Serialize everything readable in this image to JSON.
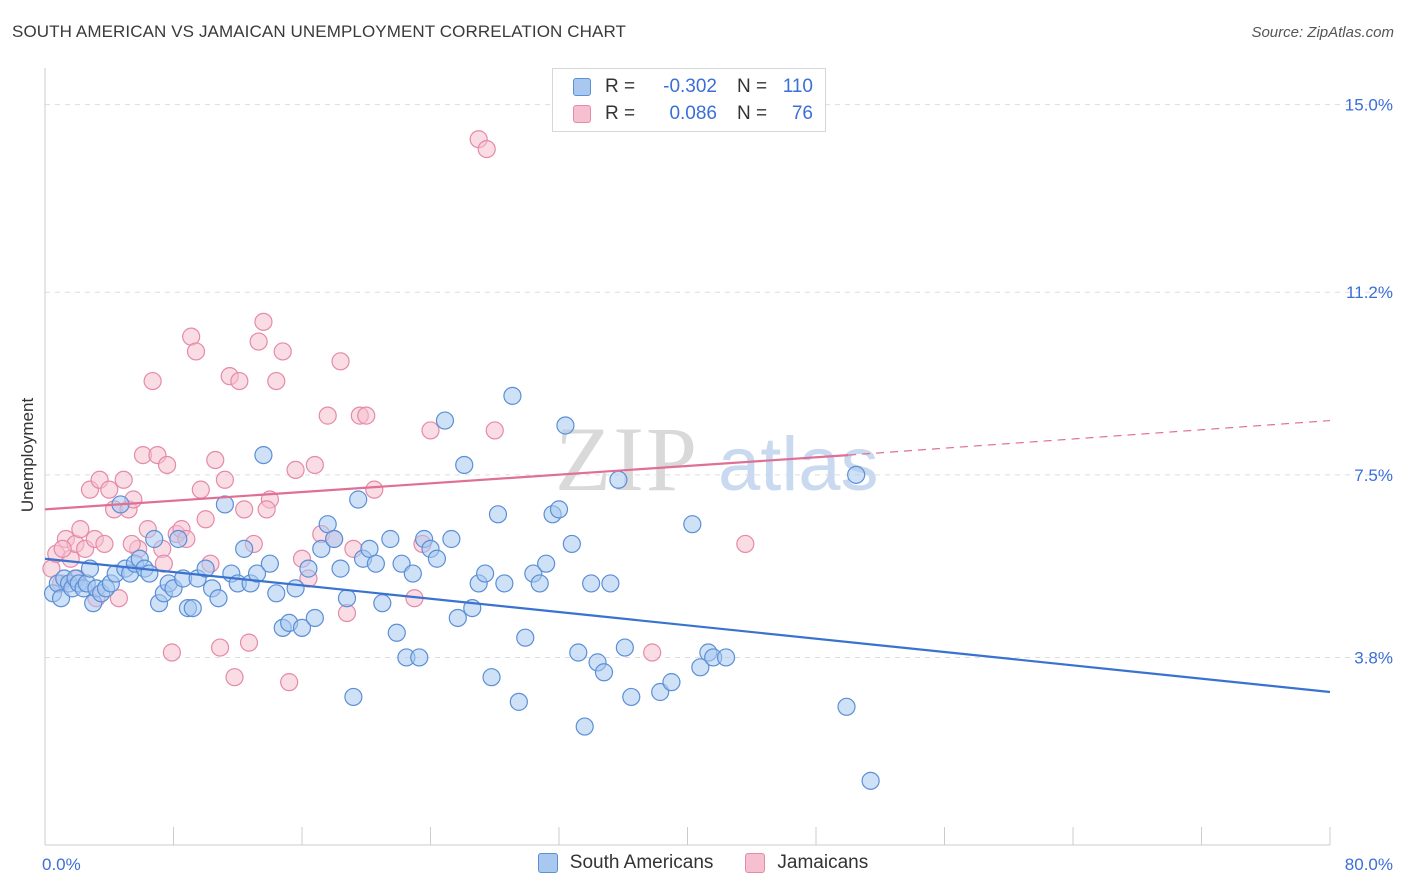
{
  "header": {
    "title": "SOUTH AMERICAN VS JAMAICAN UNEMPLOYMENT CORRELATION CHART",
    "source": "Source: ZipAtlas.com"
  },
  "legend": {
    "rows": [
      {
        "r_label": "R =",
        "r_value": "-0.302",
        "n_label": "N =",
        "n_value": "110"
      },
      {
        "r_label": "R =",
        "r_value": "0.086",
        "n_label": "N =",
        "n_value": "76"
      }
    ]
  },
  "colors": {
    "blue_fill": "#a8c8f0",
    "blue_stroke": "#5b8fd6",
    "blue_line": "#3a72d0",
    "pink_fill": "#f6c0d0",
    "pink_stroke": "#e58aa8",
    "pink_line": "#e06f96",
    "grid": "#dddddd",
    "tick_label": "#3a6fd8"
  },
  "chart_data": {
    "type": "scatter",
    "title": "SOUTH AMERICAN VS JAMAICAN UNEMPLOYMENT CORRELATION CHART",
    "xlabel": "",
    "ylabel": "Unemployment",
    "xlim": [
      0,
      80
    ],
    "ylim": [
      0,
      15.5
    ],
    "x_tick_labels": [
      "0.0%",
      "80.0%"
    ],
    "y_ticks": [
      3.8,
      7.5,
      11.2,
      15.0
    ],
    "y_tick_labels": [
      "3.8%",
      "7.5%",
      "11.2%",
      "15.0%"
    ],
    "grid": true,
    "legend_position": "top-center",
    "watermark": "ZIPatlas",
    "series": [
      {
        "name": "South Americans",
        "r": -0.302,
        "n": 110,
        "trend": {
          "x": [
            0,
            80
          ],
          "y": [
            5.8,
            3.1
          ]
        },
        "points": [
          [
            0.5,
            5.1
          ],
          [
            0.8,
            5.3
          ],
          [
            1.0,
            5.0
          ],
          [
            1.2,
            5.4
          ],
          [
            1.5,
            5.3
          ],
          [
            1.7,
            5.2
          ],
          [
            1.9,
            5.4
          ],
          [
            2.1,
            5.3
          ],
          [
            2.4,
            5.2
          ],
          [
            2.6,
            5.3
          ],
          [
            2.8,
            5.6
          ],
          [
            3.0,
            4.9
          ],
          [
            3.2,
            5.2
          ],
          [
            3.5,
            5.1
          ],
          [
            3.8,
            5.2
          ],
          [
            4.1,
            5.3
          ],
          [
            4.4,
            5.5
          ],
          [
            4.7,
            6.9
          ],
          [
            5.0,
            5.6
          ],
          [
            5.3,
            5.5
          ],
          [
            5.6,
            5.7
          ],
          [
            5.9,
            5.8
          ],
          [
            6.2,
            5.6
          ],
          [
            6.5,
            5.5
          ],
          [
            6.8,
            6.2
          ],
          [
            7.1,
            4.9
          ],
          [
            7.4,
            5.1
          ],
          [
            7.7,
            5.3
          ],
          [
            8.0,
            5.2
          ],
          [
            8.3,
            6.2
          ],
          [
            8.6,
            5.4
          ],
          [
            8.9,
            4.8
          ],
          [
            9.2,
            4.8
          ],
          [
            9.5,
            5.4
          ],
          [
            10.0,
            5.6
          ],
          [
            10.4,
            5.2
          ],
          [
            10.8,
            5.0
          ],
          [
            11.2,
            6.9
          ],
          [
            11.6,
            5.5
          ],
          [
            12.0,
            5.3
          ],
          [
            12.4,
            6.0
          ],
          [
            12.8,
            5.3
          ],
          [
            13.2,
            5.5
          ],
          [
            13.6,
            7.9
          ],
          [
            14.0,
            5.7
          ],
          [
            14.4,
            5.1
          ],
          [
            14.8,
            4.4
          ],
          [
            15.2,
            4.5
          ],
          [
            15.6,
            5.2
          ],
          [
            16.0,
            4.4
          ],
          [
            16.4,
            5.6
          ],
          [
            16.8,
            4.6
          ],
          [
            17.2,
            6.0
          ],
          [
            17.6,
            6.5
          ],
          [
            18.0,
            6.2
          ],
          [
            18.4,
            5.6
          ],
          [
            18.8,
            5.0
          ],
          [
            19.2,
            3.0
          ],
          [
            19.5,
            7.0
          ],
          [
            19.8,
            5.8
          ],
          [
            20.2,
            6.0
          ],
          [
            20.6,
            5.7
          ],
          [
            21.0,
            4.9
          ],
          [
            21.5,
            6.2
          ],
          [
            21.9,
            4.3
          ],
          [
            22.2,
            5.7
          ],
          [
            22.5,
            3.8
          ],
          [
            22.9,
            5.5
          ],
          [
            23.3,
            3.8
          ],
          [
            23.6,
            6.2
          ],
          [
            24.0,
            6.0
          ],
          [
            24.4,
            5.8
          ],
          [
            24.9,
            8.6
          ],
          [
            25.3,
            6.2
          ],
          [
            25.7,
            4.6
          ],
          [
            26.1,
            7.7
          ],
          [
            26.6,
            4.8
          ],
          [
            27.0,
            5.3
          ],
          [
            27.4,
            5.5
          ],
          [
            27.8,
            3.4
          ],
          [
            28.2,
            6.7
          ],
          [
            28.6,
            5.3
          ],
          [
            29.1,
            9.1
          ],
          [
            29.5,
            2.9
          ],
          [
            29.9,
            4.2
          ],
          [
            30.4,
            5.5
          ],
          [
            30.8,
            5.3
          ],
          [
            31.2,
            5.7
          ],
          [
            31.6,
            6.7
          ],
          [
            32.0,
            6.8
          ],
          [
            32.4,
            8.5
          ],
          [
            32.8,
            6.1
          ],
          [
            33.2,
            3.9
          ],
          [
            33.6,
            2.4
          ],
          [
            34.0,
            5.3
          ],
          [
            34.4,
            3.7
          ],
          [
            34.8,
            3.5
          ],
          [
            35.2,
            5.3
          ],
          [
            35.7,
            7.4
          ],
          [
            36.1,
            4.0
          ],
          [
            36.5,
            3.0
          ],
          [
            38.3,
            3.1
          ],
          [
            39.0,
            3.3
          ],
          [
            40.3,
            6.5
          ],
          [
            40.8,
            3.6
          ],
          [
            41.3,
            3.9
          ],
          [
            41.6,
            3.8
          ],
          [
            42.4,
            3.8
          ],
          [
            49.9,
            2.8
          ],
          [
            50.5,
            7.5
          ],
          [
            51.4,
            1.3
          ]
        ]
      },
      {
        "name": "Jamaicans",
        "r": 0.086,
        "n": 76,
        "trend": {
          "x": [
            0,
            50
          ],
          "y": [
            6.8,
            7.9
          ]
        },
        "trend_dashed": {
          "x": [
            50,
            80
          ],
          "y": [
            7.9,
            8.6
          ]
        },
        "points": [
          [
            0.4,
            5.6
          ],
          [
            0.7,
            5.9
          ],
          [
            1.0,
            5.3
          ],
          [
            1.3,
            6.2
          ],
          [
            1.6,
            5.8
          ],
          [
            1.9,
            6.1
          ],
          [
            2.2,
            6.4
          ],
          [
            2.5,
            6.0
          ],
          [
            2.8,
            7.2
          ],
          [
            3.1,
            6.2
          ],
          [
            3.4,
            7.4
          ],
          [
            3.7,
            6.1
          ],
          [
            4.0,
            7.2
          ],
          [
            4.3,
            6.8
          ],
          [
            4.6,
            5.0
          ],
          [
            4.9,
            7.4
          ],
          [
            5.2,
            6.8
          ],
          [
            5.5,
            7.0
          ],
          [
            5.8,
            6.0
          ],
          [
            6.1,
            7.9
          ],
          [
            6.4,
            6.4
          ],
          [
            6.7,
            9.4
          ],
          [
            7.0,
            7.9
          ],
          [
            7.3,
            6.0
          ],
          [
            7.6,
            7.7
          ],
          [
            7.9,
            3.9
          ],
          [
            8.2,
            6.3
          ],
          [
            8.5,
            6.4
          ],
          [
            8.8,
            6.2
          ],
          [
            9.1,
            10.3
          ],
          [
            9.4,
            10.0
          ],
          [
            9.7,
            7.2
          ],
          [
            10.0,
            6.6
          ],
          [
            10.3,
            5.7
          ],
          [
            10.6,
            7.8
          ],
          [
            10.9,
            4.0
          ],
          [
            11.2,
            7.4
          ],
          [
            11.5,
            9.5
          ],
          [
            11.8,
            3.4
          ],
          [
            12.1,
            9.4
          ],
          [
            12.4,
            6.8
          ],
          [
            12.7,
            4.1
          ],
          [
            13.0,
            6.1
          ],
          [
            13.3,
            10.2
          ],
          [
            13.6,
            10.6
          ],
          [
            14.0,
            7.0
          ],
          [
            14.4,
            9.4
          ],
          [
            14.8,
            10.0
          ],
          [
            15.2,
            3.3
          ],
          [
            15.6,
            7.6
          ],
          [
            16.0,
            5.8
          ],
          [
            16.4,
            5.4
          ],
          [
            16.8,
            7.7
          ],
          [
            17.2,
            6.3
          ],
          [
            17.6,
            8.7
          ],
          [
            18.0,
            6.2
          ],
          [
            18.4,
            9.8
          ],
          [
            18.8,
            4.7
          ],
          [
            19.2,
            6.0
          ],
          [
            19.6,
            8.7
          ],
          [
            20.0,
            8.7
          ],
          [
            20.5,
            7.2
          ],
          [
            23.0,
            5.0
          ],
          [
            23.5,
            6.1
          ],
          [
            24.0,
            8.4
          ],
          [
            27.0,
            14.3
          ],
          [
            27.5,
            14.1
          ],
          [
            28.0,
            8.4
          ],
          [
            37.8,
            3.9
          ],
          [
            43.6,
            6.1
          ],
          [
            13.8,
            6.8
          ],
          [
            7.4,
            5.7
          ],
          [
            5.4,
            6.1
          ],
          [
            3.2,
            5.0
          ],
          [
            2.0,
            5.4
          ],
          [
            1.1,
            6.0
          ]
        ]
      }
    ]
  },
  "bottom_legend": {
    "items": [
      {
        "label": "South Americans"
      },
      {
        "label": "Jamaicans"
      }
    ]
  }
}
